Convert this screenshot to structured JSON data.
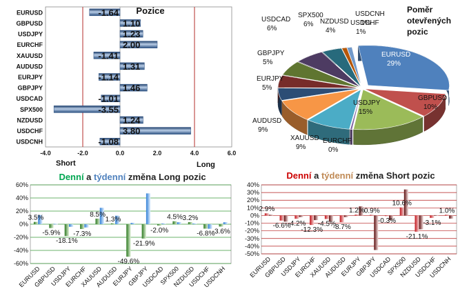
{
  "chart_data": [
    {
      "type": "bar",
      "orientation": "horizontal",
      "title": "Pozice",
      "categories": [
        "EURUSD",
        "GBPUSD",
        "USDJPY",
        "EURCHF",
        "XAUUSD",
        "AUDUSD",
        "EURJPY",
        "GBPJPY",
        "USDCAD",
        "SPX500",
        "NZDUSD",
        "USDCHF",
        "USDCNH"
      ],
      "values": [
        -1.64,
        1.1,
        1.23,
        2.0,
        -1.41,
        1.31,
        -1.14,
        1.46,
        -1.01,
        -3.55,
        1.24,
        3.8,
        -1.08
      ],
      "value_labels": [
        "-1.64",
        "1.10",
        "1.23",
        "2.00",
        "-1.41",
        "1.31",
        "-1.14",
        "1.46",
        "-1.01",
        "-3.55",
        "1.24",
        "3.80",
        "-1.08"
      ],
      "xlim": [
        -4,
        6
      ],
      "xticks": [
        "-4.0",
        "-2.0",
        "0.0",
        "2.0",
        "4.0",
        "6.0"
      ],
      "threshold_lines": [
        -2,
        4
      ],
      "side_labels": {
        "left": "Short",
        "right": "Long"
      },
      "colors": {
        "bar": "#4f81bd",
        "threshold": "#c0504d"
      }
    },
    {
      "type": "pie",
      "title": "Poměr otevřených pozic",
      "slices": [
        {
          "label": "EURUSD",
          "value": 29,
          "text": "29%",
          "color": "#4f81bd"
        },
        {
          "label": "GBPUSD",
          "value": 10,
          "text": "10%",
          "color": "#c0504d"
        },
        {
          "label": "USDJPY",
          "value": 15,
          "text": "15%",
          "color": "#9bbb59"
        },
        {
          "label": "EURCHF",
          "value": 0,
          "text": "0%",
          "color": "#8064a2"
        },
        {
          "label": "XAUUSD",
          "value": 9,
          "text": "9%",
          "color": "#4bacc6"
        },
        {
          "label": "AUDUSD",
          "value": 9,
          "text": "9%",
          "color": "#f79646"
        },
        {
          "label": "EURJPY",
          "value": 5,
          "text": "5%",
          "color": "#2c4d75"
        },
        {
          "label": "GBPJPY",
          "value": 5,
          "text": "5%",
          "color": "#772c2a"
        },
        {
          "label": "USDCAD",
          "value": 6,
          "text": "6%",
          "color": "#5f7530"
        },
        {
          "label": "SPX500",
          "value": 6,
          "text": "6%",
          "color": "#4d3b62"
        },
        {
          "label": "NZDUSD",
          "value": 4,
          "text": "4%",
          "color": "#276a7c"
        },
        {
          "label": "USDCHF",
          "value": 1,
          "text": "1%",
          "color": "#b65708"
        },
        {
          "label": "USDCNH",
          "value": 1,
          "text": "1%",
          "color": "#729aca"
        }
      ]
    },
    {
      "type": "bar",
      "title_parts": [
        {
          "text": "Denní",
          "color": "#00a651"
        },
        {
          "text": " a ",
          "color": "#222222"
        },
        {
          "text": "týdenní",
          "color": "#4f81bd"
        },
        {
          "text": " změna Long pozic",
          "color": "#222222"
        }
      ],
      "categories": [
        "EURUSD",
        "GBPUSD",
        "USDJPY",
        "EURCHF",
        "XAUUSD",
        "AUDUSD",
        "EURJPY",
        "GBPJPY",
        "USDCAD",
        "SPX500",
        "NZDUSD",
        "USDCHF",
        "USDCNH"
      ],
      "series": [
        {
          "values": [
            3.5,
            -5.9,
            -18.1,
            -7.3,
            8.5,
            1.3,
            -49.6,
            -21.9,
            -2.0,
            4.5,
            3.2,
            -6.8,
            -3.6
          ],
          "color": "#4a9a3d"
        },
        {
          "values": [
            14,
            0.5,
            -4,
            -5,
            25,
            13,
            2,
            47,
            1,
            3,
            1,
            -7,
            3
          ],
          "color": "#6fb1f0"
        }
      ],
      "data_labels": [
        "3.5%",
        "-5.9%",
        "-18.1%",
        "-7.3%",
        "8.5%",
        "1.3%",
        "-49.6%",
        "-21.9%",
        "-2.0%",
        "4.5%",
        "3.2%",
        "-6.8%",
        "-3.6%"
      ],
      "ylim": [
        -60,
        60
      ],
      "yticks": [
        "-60%",
        "-40%",
        "-20%",
        "0%",
        "20%",
        "40%",
        "60%"
      ],
      "grid": true
    },
    {
      "type": "bar",
      "title_parts": [
        {
          "text": "Denní",
          "color": "#cc0000"
        },
        {
          "text": " a ",
          "color": "#222222"
        },
        {
          "text": "týdenní",
          "color": "#c08a55"
        },
        {
          "text": " změna Short pozic",
          "color": "#222222"
        }
      ],
      "categories": [
        "EURUSD",
        "GBPUSD",
        "USDJPY",
        "EURCHF",
        "XAUUSD",
        "AUDUSD",
        "EURJPY",
        "GBPJPY",
        "USDCAD",
        "SPX500",
        "NZDUSD",
        "USDCHF",
        "USDCNH"
      ],
      "series": [
        {
          "values": [
            2.9,
            -6.6,
            -4.2,
            -12.3,
            -4.5,
            -8.7,
            1.2,
            0.9,
            -0.3,
            10.6,
            -21.1,
            -3.1,
            1.0
          ],
          "color": "#c0141b"
        },
        {
          "values": [
            1,
            -8,
            -2,
            -6,
            -8,
            -2,
            12,
            -45,
            -6,
            34,
            -18,
            0.5,
            -4
          ],
          "color": "#7a1c1c"
        }
      ],
      "data_labels": [
        "2.9%",
        "-6.6%",
        "-4.2%",
        "-12.3%",
        "-4.5%",
        "-8.7%",
        "1.2%",
        "0.9%",
        "-0.3%",
        "10.6%",
        "-21.1%",
        "-3.1%",
        "1.0%"
      ],
      "ylim": [
        -50,
        40
      ],
      "yticks": [
        "-50%",
        "-40%",
        "-30%",
        "-20%",
        "-10%",
        "0%",
        "10%",
        "20%",
        "30%",
        "40%"
      ],
      "grid": true
    }
  ]
}
